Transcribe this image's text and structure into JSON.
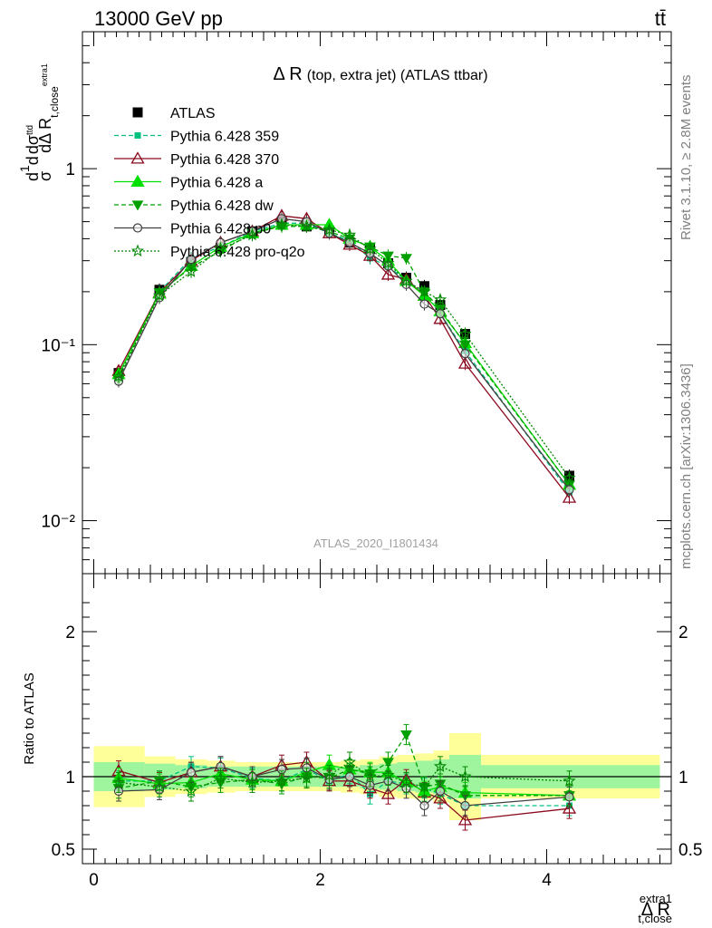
{
  "header": {
    "energy_label": "13000 GeV pp",
    "process_label": "tt̄"
  },
  "side_labels": {
    "rivet": "Rivet 3.1.10, ≥ 2.8M events",
    "mcplots": "mcplots.cern.ch [arXiv:1306.3436]"
  },
  "colors": {
    "atlas": "#000000",
    "p359": "#00c080",
    "p370": "#8b0a1e",
    "pa": "#00e000",
    "pdw": "#00a000",
    "pp0": "#404040",
    "pq2o": "#008800",
    "band_inner": "#9ef59e",
    "band_outer": "#ffff99"
  },
  "chart_data": [
    {
      "type": "line",
      "title": "Δ R (top, extra jet) (ATLAS ttbar)",
      "title_main": "Δ R",
      "title_small": "(top, extra jet) (ATLAS ttbar)",
      "watermark": "ATLAS_2020_I1801434",
      "ylabel": "dσ^ttd / σ d dΔ R_t,close^extra1",
      "yscale": "log",
      "xlim": [
        -0.1,
        5.1
      ],
      "ylim": [
        0.005,
        6
      ],
      "y_tick_labels": [
        {
          "value": 1,
          "label": "1"
        },
        {
          "value": 0.1,
          "label": "10⁻¹"
        },
        {
          "value": 0.01,
          "label": "10⁻²"
        }
      ],
      "legend_position": "top-left",
      "x": [
        0.22,
        0.58,
        0.86,
        1.12,
        1.4,
        1.66,
        1.88,
        2.08,
        2.26,
        2.44,
        2.6,
        2.76,
        2.92,
        3.06,
        3.28,
        4.2
      ],
      "series": [
        {
          "name": "ATLAS",
          "key": "atlas",
          "values": [
            0.069,
            0.205,
            0.295,
            0.355,
            0.44,
            0.5,
            0.47,
            0.445,
            0.38,
            0.35,
            0.29,
            0.24,
            0.215,
            0.168,
            0.115,
            0.018
          ]
        },
        {
          "name": "Pythia 6.428 359",
          "key": "p359",
          "values": [
            0.067,
            0.2,
            0.31,
            0.36,
            0.44,
            0.49,
            0.49,
            0.43,
            0.39,
            0.31,
            0.28,
            0.23,
            0.2,
            0.15,
            0.092,
            0.0145
          ]
        },
        {
          "name": "Pythia 6.428 370",
          "key": "p370",
          "values": [
            0.071,
            0.197,
            0.3,
            0.38,
            0.44,
            0.54,
            0.52,
            0.43,
            0.37,
            0.32,
            0.25,
            0.235,
            0.19,
            0.14,
            0.078,
            0.0135
          ]
        },
        {
          "name": "Pythia 6.428 a",
          "key": "pa",
          "values": [
            0.068,
            0.195,
            0.28,
            0.36,
            0.43,
            0.48,
            0.48,
            0.48,
            0.4,
            0.36,
            0.3,
            0.23,
            0.19,
            0.155,
            0.102,
            0.016
          ]
        },
        {
          "name": "Pythia 6.428 dw",
          "key": "pdw",
          "values": [
            0.063,
            0.198,
            0.275,
            0.34,
            0.43,
            0.47,
            0.47,
            0.44,
            0.4,
            0.36,
            0.32,
            0.31,
            0.2,
            0.16,
            0.1,
            0.016
          ]
        },
        {
          "name": "Pythia 6.428 p0",
          "key": "pp0",
          "values": [
            0.062,
            0.185,
            0.305,
            0.38,
            0.44,
            0.52,
            0.5,
            0.43,
            0.38,
            0.33,
            0.28,
            0.22,
            0.17,
            0.15,
            0.089,
            0.015
          ]
        },
        {
          "name": "Pythia 6.428 pro-q2o",
          "key": "pq2o",
          "values": [
            0.066,
            0.19,
            0.26,
            0.35,
            0.42,
            0.48,
            0.47,
            0.45,
            0.42,
            0.35,
            0.29,
            0.23,
            0.2,
            0.18,
            0.115,
            0.0175
          ]
        }
      ]
    },
    {
      "type": "line",
      "ylabel": "Ratio to ATLAS",
      "xlabel": "Δ R_t,close^extra1",
      "xlabel_main": "Δ R",
      "xlabel_sup": "extra1",
      "xlabel_sub": "t,close",
      "xlim": [
        -0.1,
        5.1
      ],
      "ylim": [
        0.4,
        2.4
      ],
      "x_ticks": [
        0,
        2,
        4
      ],
      "y_ticks_labeled": [
        0.5,
        1,
        2
      ],
      "y_tick_labels": [
        "0.5",
        "1",
        "2"
      ],
      "x": [
        0.22,
        0.58,
        0.86,
        1.12,
        1.4,
        1.66,
        1.88,
        2.08,
        2.26,
        2.44,
        2.6,
        2.76,
        2.92,
        3.06,
        3.28,
        4.2
      ],
      "uncertainty_bins": [
        {
          "lo": 0.0,
          "hi": 0.45,
          "stat": 0.1,
          "total": 0.21
        },
        {
          "lo": 0.45,
          "hi": 0.72,
          "stat": 0.09,
          "total": 0.14
        },
        {
          "lo": 0.72,
          "hi": 1.0,
          "stat": 0.08,
          "total": 0.12
        },
        {
          "lo": 1.0,
          "hi": 1.25,
          "stat": 0.07,
          "total": 0.11
        },
        {
          "lo": 1.25,
          "hi": 1.55,
          "stat": 0.07,
          "total": 0.1
        },
        {
          "lo": 1.55,
          "hi": 1.78,
          "stat": 0.07,
          "total": 0.1
        },
        {
          "lo": 1.78,
          "hi": 1.98,
          "stat": 0.07,
          "total": 0.1
        },
        {
          "lo": 1.98,
          "hi": 2.18,
          "stat": 0.07,
          "total": 0.1
        },
        {
          "lo": 2.18,
          "hi": 2.35,
          "stat": 0.07,
          "total": 0.11
        },
        {
          "lo": 2.35,
          "hi": 2.52,
          "stat": 0.08,
          "total": 0.12
        },
        {
          "lo": 2.52,
          "hi": 2.68,
          "stat": 0.09,
          "total": 0.14
        },
        {
          "lo": 2.68,
          "hi": 2.84,
          "stat": 0.1,
          "total": 0.15
        },
        {
          "lo": 2.84,
          "hi": 3.0,
          "stat": 0.11,
          "total": 0.16
        },
        {
          "lo": 3.0,
          "hi": 3.14,
          "stat": 0.12,
          "total": 0.18
        },
        {
          "lo": 3.14,
          "hi": 3.42,
          "stat": 0.15,
          "total": 0.3
        },
        {
          "lo": 3.42,
          "hi": 5.0,
          "stat": 0.08,
          "total": 0.15
        }
      ],
      "series": [
        {
          "name": "Pythia 6.428 359",
          "key": "p359",
          "values": [
            0.97,
            0.97,
            1.07,
            1.06,
            0.99,
            0.97,
            1.05,
            0.97,
            1.02,
            0.88,
            0.97,
            0.95,
            0.92,
            0.88,
            0.8,
            0.8
          ]
        },
        {
          "name": "Pythia 6.428 370",
          "key": "p370",
          "values": [
            1.04,
            0.96,
            1.03,
            1.07,
            1.0,
            1.08,
            1.1,
            0.97,
            0.97,
            0.92,
            0.88,
            0.98,
            0.89,
            0.85,
            0.7,
            0.78
          ]
        },
        {
          "name": "Pythia 6.428 a",
          "key": "pa",
          "values": [
            0.99,
            0.95,
            0.96,
            1.02,
            0.98,
            0.97,
            1.03,
            1.08,
            1.05,
            1.03,
            1.03,
            0.96,
            0.9,
            0.93,
            0.89,
            0.87
          ]
        },
        {
          "name": "Pythia 6.428 dw",
          "key": "pdw",
          "values": [
            0.92,
            0.97,
            0.93,
            0.96,
            0.98,
            0.95,
            1.0,
            0.99,
            1.05,
            1.02,
            1.1,
            1.29,
            0.93,
            0.95,
            0.87,
            0.87
          ]
        },
        {
          "name": "Pythia 6.428 p0",
          "key": "pp0",
          "values": [
            0.9,
            0.91,
            1.03,
            1.07,
            1.0,
            1.05,
            1.06,
            0.98,
            1.0,
            0.94,
            0.97,
            0.92,
            0.8,
            0.9,
            0.8,
            0.86
          ]
        },
        {
          "name": "Pythia 6.428 pro-q2o",
          "key": "pq2o",
          "values": [
            0.96,
            0.93,
            0.9,
            0.99,
            0.96,
            0.97,
            0.99,
            1.01,
            1.1,
            1.0,
            1.01,
            0.96,
            0.93,
            1.07,
            1.0,
            0.97
          ]
        }
      ]
    }
  ]
}
